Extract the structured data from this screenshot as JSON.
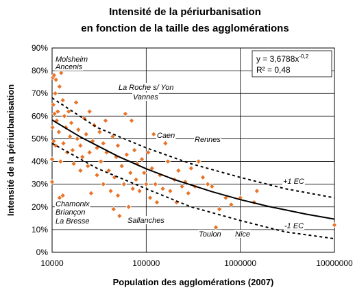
{
  "chart_data": {
    "type": "scatter",
    "title": [
      "Intensité de la périurbanisation",
      "en fonction de la taille des agglomérations"
    ],
    "x_label": "Population des agglomérations (2007)",
    "y_label": "Intensité de la périurbanisation",
    "x_log": true,
    "grid": true,
    "xlim": [
      10000,
      10000000
    ],
    "xticks": [
      10000,
      100000,
      1000000,
      10000000
    ],
    "ylim": [
      0,
      90
    ],
    "yticks": [
      {
        "value": 0,
        "label": "0%"
      },
      {
        "value": 10,
        "label": "10%"
      },
      {
        "value": 20,
        "label": "20%"
      },
      {
        "value": 30,
        "label": "30%"
      },
      {
        "value": 40,
        "label": "40%"
      },
      {
        "value": 50,
        "label": "50%"
      },
      {
        "value": 60,
        "label": "60%"
      },
      {
        "value": 70,
        "label": "70%"
      },
      {
        "value": 80,
        "label": "80%"
      },
      {
        "value": 90,
        "label": "90%"
      }
    ],
    "equation": {
      "base": "y = 3,6788x",
      "exponent": "-0,2",
      "r2": "R² = 0,48"
    },
    "annotations": [
      "Molsheim",
      "Ancenis",
      "La Roche s/ Yon",
      "Vannes",
      "Caen",
      "Rennes",
      "Chamonix",
      "Briançon",
      "La Bresse",
      "Sallanches",
      "Toulon",
      "Nice",
      "+1 EC",
      "-1 EC"
    ],
    "points": {
      "color": "#e8742a",
      "x": [
        10200,
        10500,
        11000,
        10800,
        10300,
        10100,
        10400,
        10000,
        10600,
        11500,
        11200,
        12000,
        12500,
        11800,
        10900,
        10000,
        12300,
        13000,
        13500,
        14000,
        13200,
        14500,
        15000,
        15500,
        16000,
        16500,
        17000,
        12000,
        13000,
        13500,
        14000,
        18000,
        18500,
        19000,
        20000,
        20000,
        21000,
        22000,
        23000,
        24000,
        25000,
        25000,
        26000,
        27000,
        28000,
        30000,
        30000,
        32000,
        33000,
        35000,
        35000,
        37000,
        38000,
        40000,
        42000,
        44000,
        45000,
        46000,
        48000,
        50000,
        50000,
        52000,
        55000,
        58000,
        60000,
        62000,
        65000,
        68000,
        70000,
        72000,
        75000,
        78000,
        80000,
        85000,
        90000,
        95000,
        100000,
        105000,
        110000,
        115000,
        120000,
        125000,
        130000,
        140000,
        150000,
        160000,
        170000,
        180000,
        200000,
        210000,
        220000,
        240000,
        260000,
        280000,
        300000,
        330000,
        360000,
        400000,
        450000,
        500000,
        550000,
        600000,
        700000,
        800000,
        900000,
        1000000,
        1500000,
        1400000,
        10000000
      ],
      "values": [
        77,
        78,
        76,
        70,
        65,
        55,
        49,
        41,
        61,
        62,
        58,
        73,
        79,
        53,
        47,
        31,
        40,
        67,
        60,
        55,
        48,
        44,
        62,
        51,
        57,
        45,
        39,
        24,
        25,
        21,
        17,
        66,
        50,
        54,
        47,
        36,
        42,
        59,
        52,
        38,
        44,
        62,
        26,
        49,
        56,
        34,
        46,
        53,
        40,
        30,
        48,
        58,
        44,
        36,
        27,
        51,
        19,
        33,
        42,
        25,
        47,
        16,
        38,
        30,
        61,
        43,
        20,
        35,
        58,
        28,
        45,
        32,
        39,
        27,
        41,
        35,
        30,
        44,
        24,
        37,
        52,
        30,
        22,
        34,
        28,
        48,
        40,
        27,
        32,
        22,
        36,
        29,
        31,
        26,
        37,
        29,
        40,
        33,
        30,
        29,
        11,
        19,
        24,
        21,
        7,
        24,
        27,
        22,
        12
      ]
    },
    "lines": [
      {
        "name": "fit",
        "x": [
          10000,
          20000,
          50000,
          100000,
          200000,
          500000,
          1000000,
          2000000,
          5000000,
          10000000
        ],
        "values": [
          58.3,
          50.8,
          42.3,
          36.8,
          32.0,
          26.7,
          23.2,
          20.2,
          16.8,
          14.6
        ]
      },
      {
        "name": "+1 EC",
        "x": [
          10000,
          30000,
          100000,
          300000,
          1000000,
          3000000,
          10000000
        ],
        "values": [
          68,
          55,
          46,
          39,
          33,
          28,
          24
        ]
      },
      {
        "name": "-1 EC",
        "x": [
          10000,
          30000,
          100000,
          300000,
          1000000,
          3000000,
          10000000
        ],
        "values": [
          48,
          37,
          28,
          20,
          14,
          9,
          6
        ]
      }
    ]
  }
}
